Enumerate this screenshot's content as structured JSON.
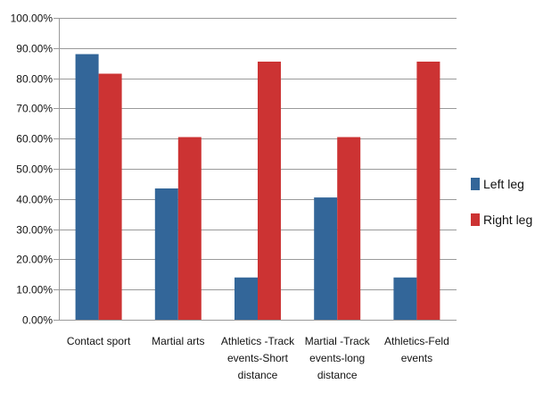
{
  "chart_data": {
    "type": "bar",
    "title": "",
    "xlabel": "",
    "ylabel": "",
    "ylim": [
      0,
      100
    ],
    "y_tick_step": 10,
    "y_tick_format": "percent_2dp",
    "y_ticks": [
      "0.00%",
      "10.00%",
      "20.00%",
      "30.00%",
      "40.00%",
      "50.00%",
      "60.00%",
      "70.00%",
      "80.00%",
      "90.00%",
      "100.00%"
    ],
    "grid": true,
    "legend_position": "right",
    "categories": [
      [
        "Contact sport"
      ],
      [
        "Martial arts"
      ],
      [
        "Athletics -Track",
        "events-Short",
        "distance"
      ],
      [
        "Martial -Track",
        "events-long",
        "distance"
      ],
      [
        "Athletics-Feld",
        "events"
      ]
    ],
    "series": [
      {
        "name": "Left leg",
        "color": "#336699",
        "values": [
          88.0,
          43.5,
          14.0,
          40.5,
          14.0
        ]
      },
      {
        "name": "Right leg",
        "color": "#cc3333",
        "values": [
          81.5,
          60.5,
          85.5,
          60.5,
          85.5
        ]
      }
    ]
  }
}
